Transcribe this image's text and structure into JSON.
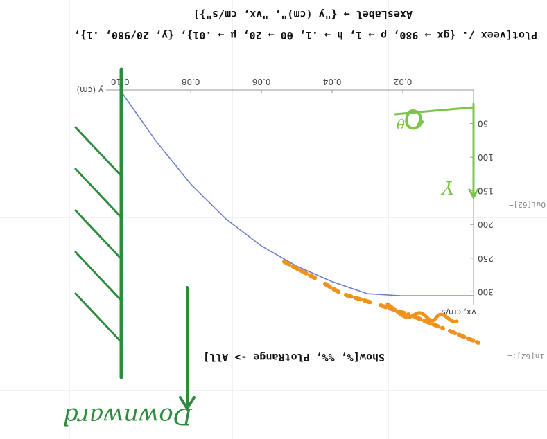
{
  "cells": {
    "input_label": "In[62]:=",
    "output_label": "Out[62]=",
    "code": [
      "Plot[veex /. {gx → 980, ρ → 1, h → .1, θ0 → 20, μ → .01}, {y, 20/980, .1},",
      "AxesLabel → {\"y (cm)\", \"vx, cm/s\"}]",
      "Show[%, %%, PlotRange -> All]"
    ]
  },
  "chart_data": {
    "type": "line",
    "x_label": "y (cm)",
    "y_label": "vx, cm/s",
    "x": [
      0,
      0.0204,
      0.03,
      0.04,
      0.05,
      0.06,
      0.07,
      0.08,
      0.09,
      0.1
    ],
    "series": [
      {
        "color": "#6b7fc4",
        "values": [
          306,
          306,
          303,
          285,
          262,
          232,
          192,
          140,
          75,
          0
        ]
      }
    ],
    "xlim": [
      0,
      0.102
    ],
    "ylim": [
      0,
      310
    ],
    "xticks": [
      {
        "value": 0.02,
        "label": "0.02"
      },
      0.04,
      0.06,
      0.08,
      {
        "value": 0.1,
        "label": "0.10"
      }
    ],
    "yticks": [
      50,
      100,
      150,
      200,
      250,
      300
    ]
  },
  "handwriting": {
    "word": "Downward",
    "axis": "Y",
    "angle": "θ"
  }
}
